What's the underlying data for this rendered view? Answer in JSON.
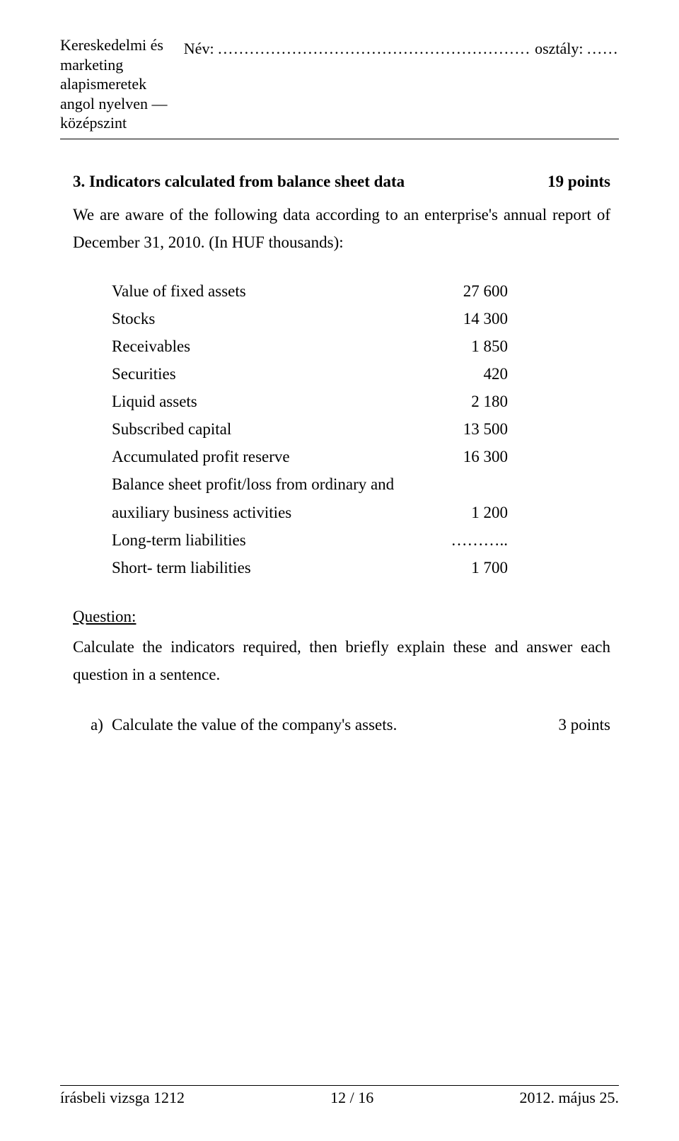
{
  "header": {
    "subject_line1": "Kereskedelmi és marketing alapismeretek",
    "subject_line2": "angol nyelven — középszint",
    "name_label": "Név:",
    "name_dots": "...........................................................",
    "class_label": "osztály:",
    "class_dots": "......"
  },
  "question": {
    "number": "3. ",
    "title": "Indicators calculated from balance sheet data",
    "points": "19 points",
    "intro": "We are aware of the following data according to an enterprise's annual report of December 31, 2010. (In HUF thousands):"
  },
  "data": {
    "rows": [
      {
        "label": "Value of fixed assets",
        "value": "27 600"
      },
      {
        "label": "Stocks",
        "value": "14 300"
      },
      {
        "label": "Receivables",
        "value": "1 850"
      },
      {
        "label": "Securities",
        "value": "420"
      },
      {
        "label": "Liquid assets",
        "value": "2 180"
      },
      {
        "label": "Subscribed capital",
        "value": "13 500"
      },
      {
        "label": "Accumulated profit reserve",
        "value": "16 300"
      },
      {
        "label": "Balance sheet profit/loss from ordinary and",
        "value": ""
      },
      {
        "label": "auxiliary business activities",
        "value": "1 200"
      },
      {
        "label": "Long-term liabilities",
        "value": "……….."
      },
      {
        "label": "Short- term liabilities",
        "value": "1 700"
      }
    ]
  },
  "subquestion": {
    "heading": "Question:",
    "text": "Calculate the indicators required, then briefly explain these and answer each question in a sentence."
  },
  "task_a": {
    "letter": "a)",
    "text": "Calculate the value of the company's assets.",
    "points": "3 points"
  },
  "footer": {
    "left": "írásbeli vizsga 1212",
    "center": "12 / 16",
    "right": "2012. május 25."
  }
}
